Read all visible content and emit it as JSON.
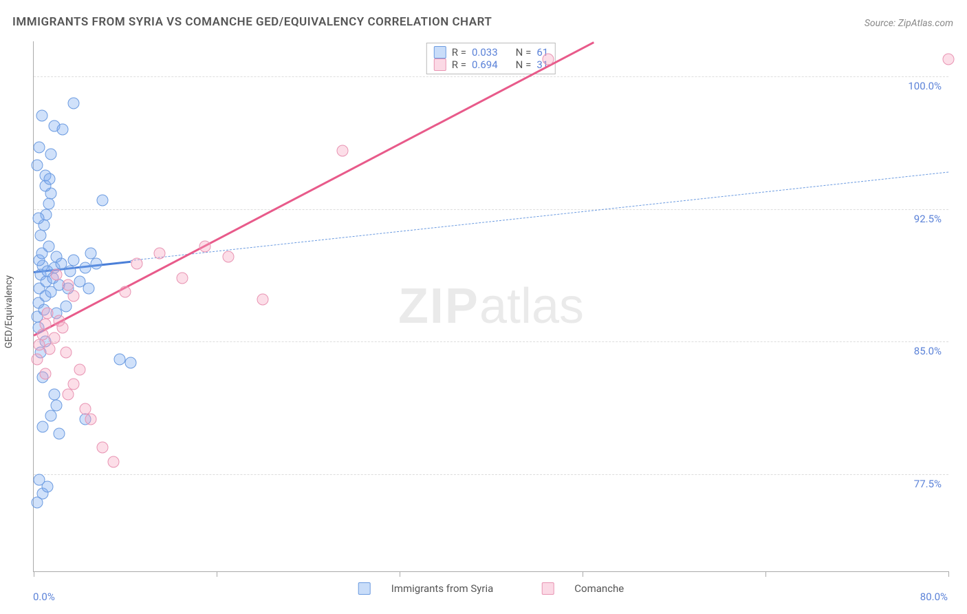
{
  "title": "IMMIGRANTS FROM SYRIA VS COMANCHE GED/EQUIVALENCY CORRELATION CHART",
  "source": "Source: ZipAtlas.com",
  "y_axis_label": "GED/Equivalency",
  "watermark_bold": "ZIP",
  "watermark_rest": "atlas",
  "chart": {
    "type": "scatter",
    "xlim": [
      0,
      80
    ],
    "ylim": [
      72,
      102
    ],
    "x_ticks": [
      0,
      16,
      32,
      48,
      64,
      80
    ],
    "y_gridlines": [
      77.5,
      85.0,
      92.5,
      100.0
    ],
    "y_tick_labels": [
      "77.5%",
      "85.0%",
      "92.5%",
      "100.0%"
    ],
    "x_min_label": "0.0%",
    "x_max_label": "80.0%",
    "background_color": "#ffffff",
    "grid_color": "#dddddd",
    "axis_color": "#aaaaaa",
    "marker_radius": 8.5,
    "series": [
      {
        "name": "Immigrants from Syria",
        "color_fill": "rgba(120,170,240,0.35)",
        "color_stroke": "#6a9ae0",
        "R": "0.033",
        "N": "61",
        "regression": {
          "x1": 0,
          "y1": 89.0,
          "x2": 80,
          "y2": 94.6,
          "solid_x_lo": 0,
          "solid_x_hi": 8.5,
          "line_width_solid": 3,
          "line_width_dashed": 1.5
        },
        "points": [
          [
            0.3,
            86.4
          ],
          [
            0.4,
            87.2
          ],
          [
            0.5,
            88.0
          ],
          [
            0.6,
            88.8
          ],
          [
            0.8,
            89.3
          ],
          [
            0.5,
            89.6
          ],
          [
            0.9,
            86.8
          ],
          [
            1.0,
            87.6
          ],
          [
            1.1,
            88.4
          ],
          [
            1.2,
            89.0
          ],
          [
            0.7,
            90.0
          ],
          [
            1.3,
            90.4
          ],
          [
            1.0,
            85.0
          ],
          [
            0.6,
            84.4
          ],
          [
            0.4,
            85.8
          ],
          [
            0.8,
            83.0
          ],
          [
            1.5,
            87.8
          ],
          [
            1.7,
            88.6
          ],
          [
            1.8,
            89.2
          ],
          [
            2.0,
            89.8
          ],
          [
            2.2,
            88.2
          ],
          [
            2.4,
            89.4
          ],
          [
            2.0,
            86.6
          ],
          [
            0.5,
            77.2
          ],
          [
            0.8,
            76.4
          ],
          [
            1.2,
            76.8
          ],
          [
            0.3,
            75.9
          ],
          [
            0.6,
            91.0
          ],
          [
            0.9,
            91.6
          ],
          [
            1.1,
            92.2
          ],
          [
            1.3,
            92.8
          ],
          [
            0.4,
            92.0
          ],
          [
            1.5,
            93.4
          ],
          [
            1.0,
            93.8
          ],
          [
            0.5,
            96.0
          ],
          [
            1.5,
            95.6
          ],
          [
            1.8,
            97.2
          ],
          [
            0.7,
            97.8
          ],
          [
            2.5,
            97.0
          ],
          [
            3.5,
            98.5
          ],
          [
            1.0,
            94.4
          ],
          [
            1.4,
            94.2
          ],
          [
            0.3,
            95.0
          ],
          [
            0.8,
            80.2
          ],
          [
            1.5,
            80.8
          ],
          [
            2.0,
            81.4
          ],
          [
            2.2,
            79.8
          ],
          [
            1.8,
            82.0
          ],
          [
            4.5,
            80.6
          ],
          [
            7.5,
            84.0
          ],
          [
            2.8,
            87.0
          ],
          [
            3.0,
            88.0
          ],
          [
            3.2,
            89.0
          ],
          [
            3.5,
            89.6
          ],
          [
            4.0,
            88.4
          ],
          [
            4.5,
            89.2
          ],
          [
            4.8,
            88.0
          ],
          [
            5.0,
            90.0
          ],
          [
            5.5,
            89.4
          ],
          [
            6.0,
            93.0
          ],
          [
            8.5,
            83.8
          ]
        ]
      },
      {
        "name": "Comanche",
        "color_fill": "rgba(245,160,190,0.35)",
        "color_stroke": "#e893b2",
        "R": "0.694",
        "N": "31",
        "regression": {
          "x1": 0,
          "y1": 85.4,
          "x2": 49,
          "y2": 102,
          "solid_x_lo": 0,
          "solid_x_hi": 80,
          "line_width_solid": 3
        },
        "points": [
          [
            0.3,
            84.0
          ],
          [
            0.5,
            84.8
          ],
          [
            0.8,
            85.4
          ],
          [
            1.0,
            86.0
          ],
          [
            1.2,
            86.6
          ],
          [
            1.0,
            83.2
          ],
          [
            1.4,
            84.6
          ],
          [
            1.8,
            85.2
          ],
          [
            2.2,
            86.2
          ],
          [
            2.5,
            85.8
          ],
          [
            2.0,
            88.8
          ],
          [
            3.0,
            88.2
          ],
          [
            3.5,
            87.6
          ],
          [
            2.8,
            84.4
          ],
          [
            3.0,
            82.0
          ],
          [
            3.5,
            82.6
          ],
          [
            4.0,
            83.4
          ],
          [
            4.5,
            81.2
          ],
          [
            5.0,
            80.6
          ],
          [
            6.0,
            79.0
          ],
          [
            7.0,
            78.2
          ],
          [
            8.0,
            87.8
          ],
          [
            9.0,
            89.4
          ],
          [
            11.0,
            90.0
          ],
          [
            13.0,
            88.6
          ],
          [
            15.0,
            90.4
          ],
          [
            17.0,
            89.8
          ],
          [
            20.0,
            87.4
          ],
          [
            27.0,
            95.8
          ],
          [
            45.0,
            101.0
          ],
          [
            80.0,
            101.0
          ]
        ]
      }
    ]
  },
  "legend_top": {
    "R_label": "R =",
    "N_label": "N ="
  },
  "legend_bottom": {
    "series1": "Immigrants from Syria",
    "series2": "Comanche"
  }
}
